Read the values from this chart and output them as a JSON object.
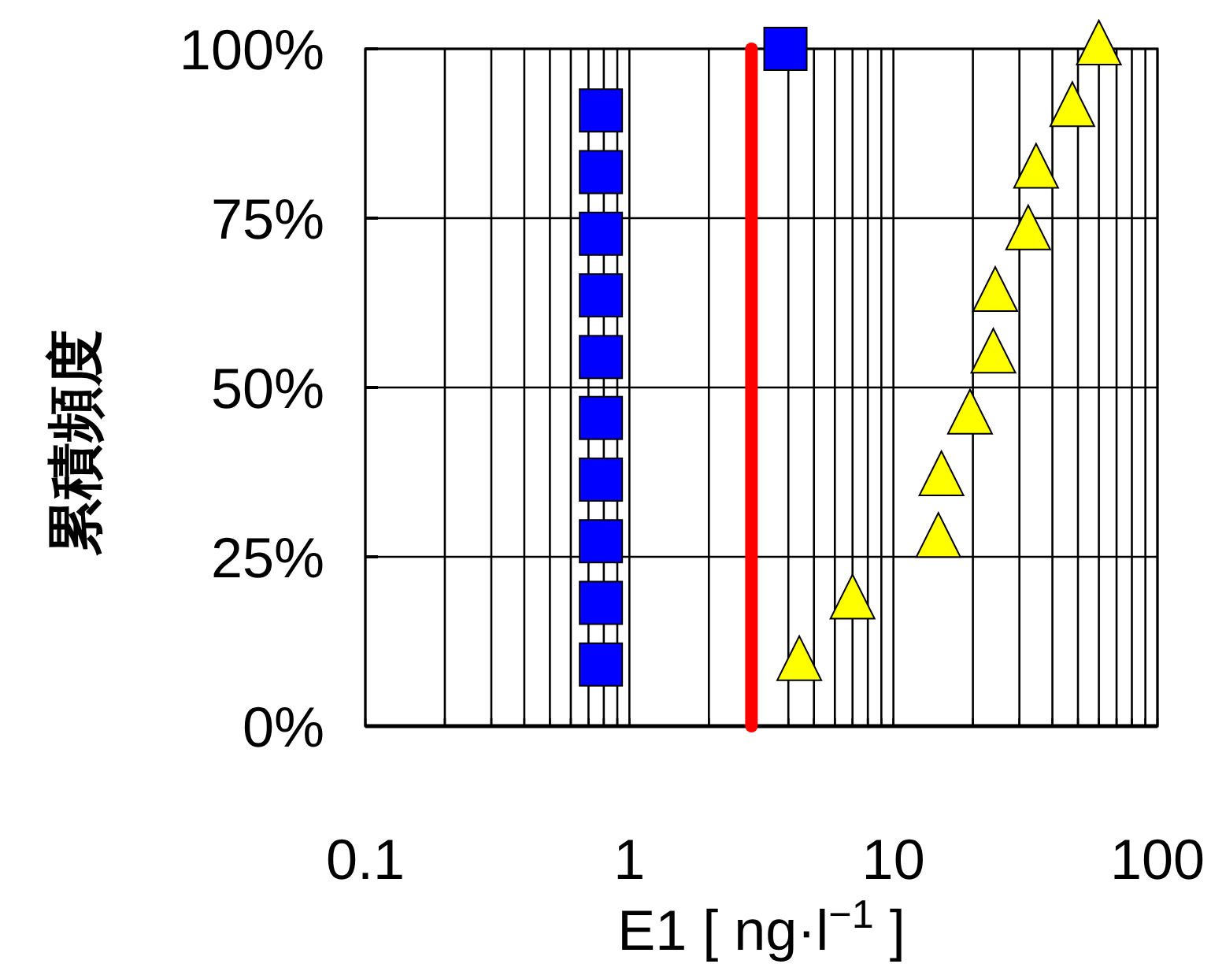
{
  "chart_data": {
    "type": "scatter",
    "xlabel": "E1 [ ng·l$^{−1}$ ]",
    "ylabel": "累積頻度",
    "log": "x",
    "grid": true,
    "xlim": [
      0.1,
      100
    ],
    "ylim": [
      0,
      100
    ],
    "xticks": [
      0.1,
      {
        "value": 0.2,
        "label": null
      },
      {
        "value": 0.3,
        "label": null
      },
      {
        "value": 0.4,
        "label": null
      },
      {
        "value": 0.5,
        "label": null
      },
      {
        "value": 0.6,
        "label": null
      },
      {
        "value": 0.7,
        "label": null
      },
      {
        "value": 0.8,
        "label": null
      },
      {
        "value": 0.9,
        "label": null
      },
      1,
      {
        "value": 2,
        "label": null
      },
      {
        "value": 3,
        "label": null
      },
      {
        "value": 4,
        "label": null
      },
      {
        "value": 5,
        "label": null
      },
      {
        "value": 6,
        "label": null
      },
      {
        "value": 7,
        "label": null
      },
      {
        "value": 8,
        "label": null
      },
      {
        "value": 9,
        "label": null
      },
      10,
      {
        "value": 20,
        "label": null
      },
      {
        "value": 30,
        "label": null
      },
      {
        "value": 40,
        "label": null
      },
      {
        "value": 50,
        "label": null
      },
      {
        "value": 60,
        "label": null
      },
      {
        "value": 70,
        "label": null
      },
      {
        "value": 80,
        "label": null
      },
      {
        "value": 90,
        "label": null
      },
      100
    ],
    "yticks": [
      {
        "value": 0,
        "label": "0%"
      },
      {
        "value": 25,
        "label": "25%"
      },
      {
        "value": 50,
        "label": "50%"
      },
      {
        "value": 75,
        "label": "75%"
      },
      {
        "value": 100,
        "label": "100%"
      }
    ],
    "series": [
      {
        "color": "#0000ff",
        "marker": "square",
        "x": [
          0.78,
          0.78,
          0.78,
          0.78,
          0.78,
          0.78,
          0.78,
          0.78,
          0.78,
          0.78,
          3.9
        ],
        "values": [
          9.1,
          18.2,
          27.3,
          36.4,
          45.5,
          54.5,
          63.6,
          72.7,
          81.8,
          90.9,
          100
        ]
      },
      {
        "color": "#ffff00",
        "marker": "triangle",
        "x": [
          4.4,
          7.0,
          14.8,
          15.2,
          19.5,
          23.9,
          24.3,
          32.4,
          34.7,
          47.6,
          60
        ],
        "values": [
          9.1,
          18.2,
          27.3,
          36.4,
          45.5,
          54.5,
          63.6,
          72.7,
          81.8,
          90.9,
          100
        ]
      }
    ],
    "ref_lines": [
      {
        "axis": "x",
        "value": 2.9,
        "color": "#ff0000"
      }
    ]
  }
}
